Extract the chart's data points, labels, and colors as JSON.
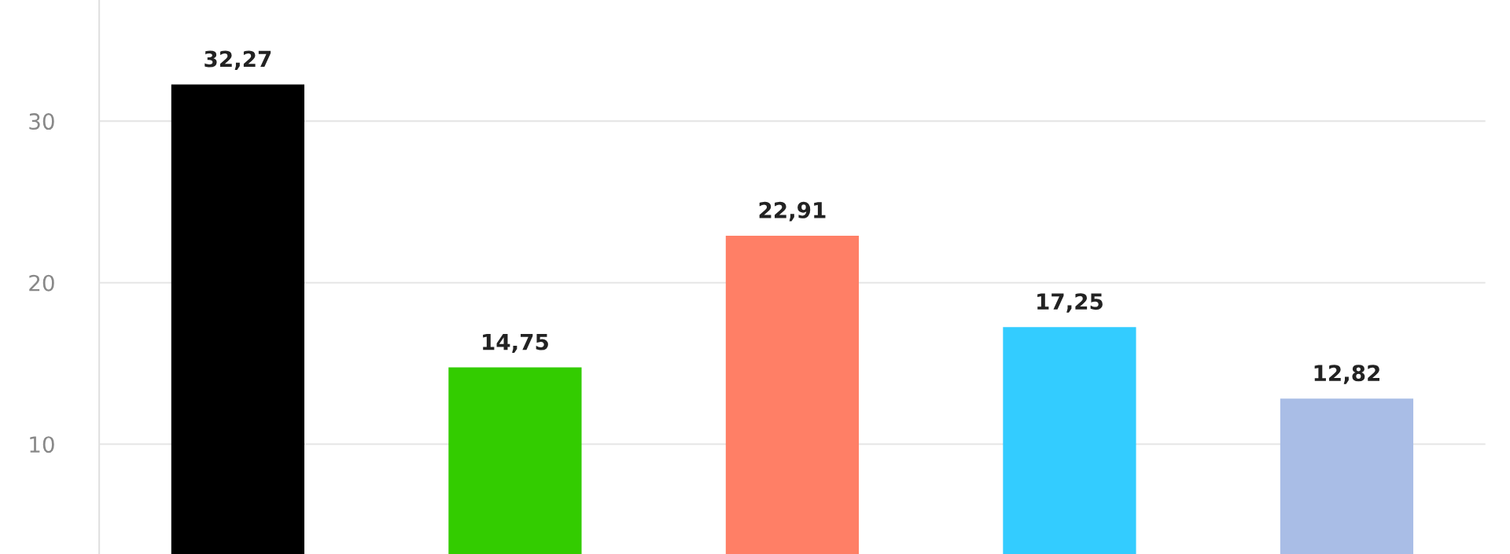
{
  "chart_data": {
    "type": "bar",
    "categories": [
      null,
      null,
      null,
      null,
      null
    ],
    "values": [
      32.27,
      14.75,
      22.91,
      17.25,
      12.82
    ],
    "colors": [
      "#000000",
      "#33cc00",
      "#ff7f66",
      "#33ccff",
      "#a9bde6"
    ],
    "value_labels": [
      "32,27",
      "14,75",
      "22,91",
      "17,25",
      "12,82"
    ],
    "ylim": [
      3.2,
      37.5
    ],
    "yticks": [
      10,
      20,
      30
    ],
    "grid": "y",
    "legend": false
  }
}
